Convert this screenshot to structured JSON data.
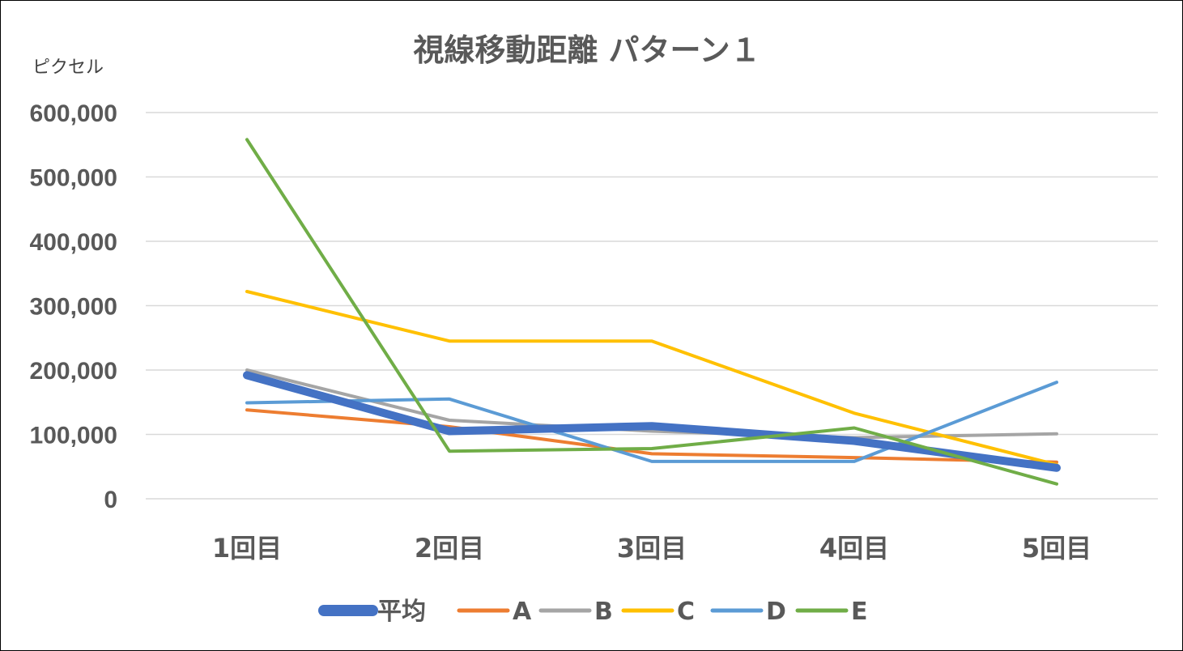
{
  "chart_data": {
    "type": "line",
    "title": "視線移動距離 パターン１",
    "ylabel": "ピクセル",
    "xlabel": "",
    "categories": [
      "1回目",
      "2回目",
      "3回目",
      "4回目",
      "5回目"
    ],
    "ylim": [
      0,
      600000
    ],
    "yticks": [
      0,
      100000,
      200000,
      300000,
      400000,
      500000,
      600000
    ],
    "ytick_labels": [
      "0",
      "100,000",
      "200,000",
      "300,000",
      "400,000",
      "500,000",
      "600,000"
    ],
    "grid": true,
    "legend": "bottom",
    "series": [
      {
        "name": "平均",
        "color": "#4472c4",
        "width": 10,
        "values": [
          192000,
          105000,
          113000,
          90000,
          48000
        ]
      },
      {
        "name": "A",
        "color": "#ed7d31",
        "width": 4,
        "values": [
          138000,
          112000,
          70000,
          64000,
          57000
        ]
      },
      {
        "name": "B",
        "color": "#a5a5a5",
        "width": 4,
        "values": [
          200000,
          122000,
          105000,
          95000,
          101000
        ]
      },
      {
        "name": "C",
        "color": "#ffc000",
        "width": 4,
        "values": [
          322000,
          245000,
          245000,
          133000,
          53000
        ]
      },
      {
        "name": "D",
        "color": "#5b9bd5",
        "width": 4,
        "values": [
          149000,
          155000,
          58000,
          58000,
          181000
        ]
      },
      {
        "name": "E",
        "color": "#70ad47",
        "width": 4,
        "values": [
          558000,
          74000,
          78000,
          110000,
          23000
        ]
      }
    ]
  }
}
